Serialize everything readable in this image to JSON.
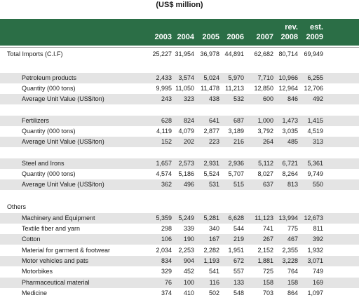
{
  "caption": "(US$ million)",
  "years": [
    {
      "top": "",
      "bottom": "2003"
    },
    {
      "top": "",
      "bottom": "2004"
    },
    {
      "top": "",
      "bottom": "2005"
    },
    {
      "top": "",
      "bottom": "2006"
    },
    {
      "top": "",
      "bottom": "2007"
    },
    {
      "top": "rev.",
      "bottom": "2008"
    },
    {
      "top": "est.",
      "bottom": "2009"
    }
  ],
  "rows": [
    {
      "label": "Total Imports (C.I.F)",
      "values": [
        "25,227",
        "31,954",
        "36,978",
        "44,891",
        "62,682",
        "80,714",
        "69,949"
      ]
    },
    {
      "label": "Petroleum products",
      "values": [
        "2,433",
        "3,574",
        "5,024",
        "5,970",
        "7,710",
        "10,966",
        "6,255"
      ]
    },
    {
      "label": "Quantity (000 tons)",
      "values": [
        "9,995",
        "11,050",
        "11,478",
        "11,213",
        "12,850",
        "12,964",
        "12,706"
      ]
    },
    {
      "label": "Average Unit Value (US$/ton)",
      "values": [
        "243",
        "323",
        "438",
        "532",
        "600",
        "846",
        "492"
      ]
    },
    {
      "label": "Fertilizers",
      "values": [
        "628",
        "824",
        "641",
        "687",
        "1,000",
        "1,473",
        "1,415"
      ]
    },
    {
      "label": "Quantity (000 tons)",
      "values": [
        "4,119",
        "4,079",
        "2,877",
        "3,189",
        "3,792",
        "3,035",
        "4,519"
      ]
    },
    {
      "label": "Average Unit Value (US$/ton)",
      "values": [
        "152",
        "202",
        "223",
        "216",
        "264",
        "485",
        "313"
      ]
    },
    {
      "label": "Steel and Irons",
      "values": [
        "1,657",
        "2,573",
        "2,931",
        "2,936",
        "5,112",
        "6,721",
        "5,361"
      ]
    },
    {
      "label": "Quantity (000 tons)",
      "values": [
        "4,574",
        "5,186",
        "5,524",
        "5,707",
        "8,027",
        "8,264",
        "9,749"
      ]
    },
    {
      "label": "Average Unit Value (US$/ton)",
      "values": [
        "362",
        "496",
        "531",
        "515",
        "637",
        "813",
        "550"
      ]
    },
    {
      "label": "Others",
      "values": [
        "",
        "",
        "",
        "",
        "",
        "",
        ""
      ]
    },
    {
      "label": "Machinery and Equipment",
      "values": [
        "5,359",
        "5,249",
        "5,281",
        "6,628",
        "11,123",
        "13,994",
        "12,673"
      ]
    },
    {
      "label": "Textile fiber and yarn",
      "values": [
        "298",
        "339",
        "340",
        "544",
        "741",
        "775",
        "811"
      ]
    },
    {
      "label": "Cotton",
      "values": [
        "106",
        "190",
        "167",
        "219",
        "267",
        "467",
        "392"
      ]
    },
    {
      "label": "Material for garment & footwear",
      "values": [
        "2,034",
        "2,253",
        "2,282",
        "1,951",
        "2,152",
        "2,355",
        "1,932"
      ]
    },
    {
      "label": "Motor vehicles and pats",
      "values": [
        "834",
        "904",
        "1,193",
        "672",
        "1,881",
        "3,228",
        "3,071"
      ]
    },
    {
      "label": "Motorbikes",
      "values": [
        "329",
        "452",
        "541",
        "557",
        "725",
        "764",
        "749"
      ]
    },
    {
      "label": "Pharmaceutical material",
      "values": [
        "76",
        "100",
        "116",
        "133",
        "158",
        "158",
        "169"
      ]
    },
    {
      "label": "Medicine",
      "values": [
        "374",
        "410",
        "502",
        "548",
        "703",
        "864",
        "1,097"
      ]
    }
  ]
}
